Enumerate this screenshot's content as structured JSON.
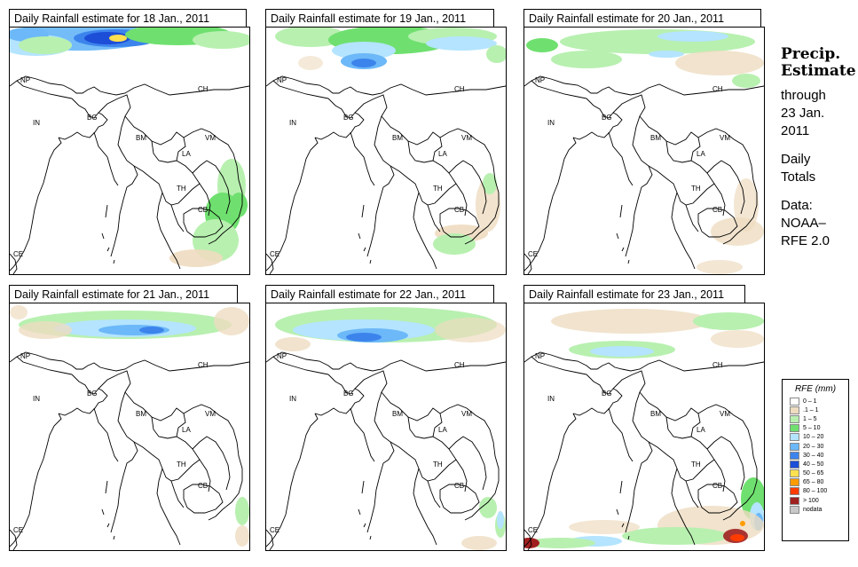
{
  "panels": [
    {
      "title": "Daily Rainfall estimate for  18 Jan., 2011",
      "date": "18 Jan., 2011"
    },
    {
      "title": "Daily Rainfall estimate for  19 Jan., 2011",
      "date": "19 Jan., 2011"
    },
    {
      "title": "Daily Rainfall estimate for  20 Jan., 2011",
      "date": "20 Jan., 2011"
    },
    {
      "title": "Daily Rainfall estimate for  21 Jan., 2011",
      "date": "21 Jan., 2011"
    },
    {
      "title": "Daily Rainfall estimate for  22 Jan., 2011",
      "date": "22 Jan., 2011"
    },
    {
      "title": "Daily Rainfall estimate for  23 Jan., 2011",
      "date": "23 Jan., 2011"
    }
  ],
  "map_labels": [
    "NP",
    "CH",
    "BG",
    "IN",
    "BM",
    "VM",
    "LA",
    "TH",
    "CB",
    "CE"
  ],
  "sidebar": {
    "heading1": "Precip.",
    "heading2": "Estimate",
    "line1": "through",
    "line2": "23 Jan.",
    "line3": "2011",
    "line4": "Daily",
    "line5": "Totals",
    "line6": "Data:",
    "line7": "NOAA–",
    "line8": "RFE 2.0"
  },
  "legend": {
    "title": "RFE (mm)",
    "items": [
      {
        "label": "0 – 1",
        "color": "#ffffff"
      },
      {
        "label": ".1 – 1",
        "color": "#eedcc0"
      },
      {
        "label": "1 – 5",
        "color": "#b8f0b0"
      },
      {
        "label": "5 – 10",
        "color": "#6fe06f"
      },
      {
        "label": "10 – 20",
        "color": "#b4e4ff"
      },
      {
        "label": "20 – 30",
        "color": "#6cb8f8"
      },
      {
        "label": "30 – 40",
        "color": "#3c84ec"
      },
      {
        "label": "40 – 50",
        "color": "#1c4ed8"
      },
      {
        "label": "50 – 65",
        "color": "#ffe050"
      },
      {
        "label": "65 – 80",
        "color": "#ff9c00"
      },
      {
        "label": "80 – 100",
        "color": "#ff3c00"
      },
      {
        "label": "> 100",
        "color": "#a02020"
      },
      {
        "label": "nodata",
        "color": "#c8c8c8"
      }
    ]
  }
}
